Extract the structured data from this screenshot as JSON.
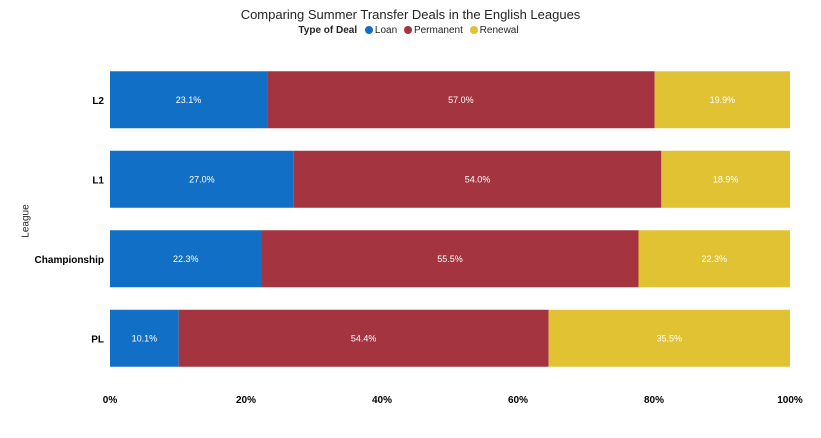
{
  "chart_data": {
    "type": "bar",
    "orientation": "horizontal",
    "stacked": "percent",
    "title": "Comparing Summer Transfer Deals in the English Leagues",
    "legend_title": "Type of Deal",
    "legend_position": "top-center",
    "ylabel": "League",
    "xlabel": "",
    "categories": [
      "L2",
      "L1",
      "Championship",
      "PL"
    ],
    "series": [
      {
        "name": "Loan",
        "color": "#1170c6",
        "values": [
          23.1,
          27.0,
          22.3,
          10.1
        ],
        "labels": [
          "23.1%",
          "27.0%",
          "22.3%",
          "10.1%"
        ]
      },
      {
        "name": "Permanent",
        "color": "#a4343f",
        "values": [
          57.0,
          54.0,
          55.5,
          54.4
        ],
        "labels": [
          "57.0%",
          "54.0%",
          "55.5%",
          "54.4%"
        ]
      },
      {
        "name": "Renewal",
        "color": "#e1c233",
        "values": [
          19.9,
          18.9,
          22.3,
          35.5
        ],
        "labels": [
          "19.9%",
          "18.9%",
          "22.3%",
          "35.5%"
        ]
      }
    ],
    "xlim": [
      0,
      100
    ],
    "xticks": [
      "0%",
      "20%",
      "40%",
      "60%",
      "80%",
      "100%"
    ],
    "grid": false
  }
}
